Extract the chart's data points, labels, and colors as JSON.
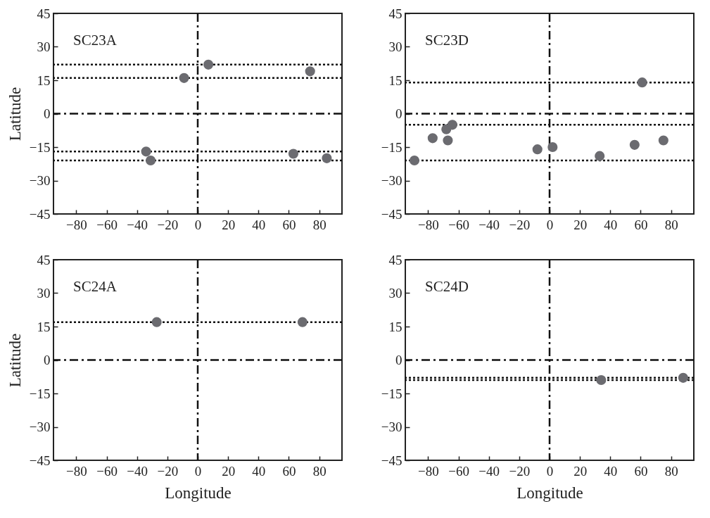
{
  "chart_data": [
    {
      "type": "scatter",
      "annotations": [
        "SC23A"
      ],
      "ylabel": "Latitude",
      "xlim": [
        -95,
        95
      ],
      "ylim": [
        -45,
        45
      ],
      "xticks": [
        -80,
        -60,
        -40,
        -20,
        0,
        20,
        40,
        60,
        80
      ],
      "yticks": [
        -45,
        -30,
        -15,
        0,
        15,
        30,
        45
      ],
      "marker": "circle",
      "series": [
        {
          "color": "#6b6b70",
          "x": [
            -9,
            7,
            74,
            -34,
            -31,
            63,
            85
          ],
          "values": [
            16,
            22,
            19,
            -17,
            -21,
            -18,
            -20
          ]
        }
      ],
      "ref_lines": [
        {
          "axis": "x",
          "value": 0,
          "line_style": "dashdot",
          "color": "#111111"
        },
        {
          "axis": "y",
          "value": 0,
          "line_style": "dashdot",
          "color": "#111111"
        },
        {
          "axis": "y",
          "value": 22,
          "line_style": "dotted",
          "color": "#111111"
        },
        {
          "axis": "y",
          "value": 16,
          "line_style": "dotted",
          "color": "#111111"
        },
        {
          "axis": "y",
          "value": -17,
          "line_style": "dotted",
          "color": "#111111"
        },
        {
          "axis": "y",
          "value": -21,
          "line_style": "dotted",
          "color": "#111111"
        }
      ]
    },
    {
      "type": "scatter",
      "annotations": [
        "SC23D"
      ],
      "xlim": [
        -95,
        95
      ],
      "ylim": [
        -45,
        45
      ],
      "xticks": [
        -80,
        -60,
        -40,
        -20,
        0,
        20,
        40,
        60,
        80
      ],
      "yticks": [
        -45,
        -30,
        -15,
        0,
        15,
        30,
        45
      ],
      "marker": "circle",
      "series": [
        {
          "color": "#6b6b70",
          "x": [
            -89,
            -77,
            -68,
            -64,
            -67,
            -8,
            2,
            33,
            56,
            75,
            61
          ],
          "values": [
            -21,
            -11,
            -7,
            -5,
            -12,
            -16,
            -15,
            -19,
            -14,
            -12,
            14
          ]
        }
      ],
      "ref_lines": [
        {
          "axis": "x",
          "value": 0,
          "line_style": "dashdot",
          "color": "#111111"
        },
        {
          "axis": "y",
          "value": 0,
          "line_style": "dashdot",
          "color": "#111111"
        },
        {
          "axis": "y",
          "value": 14,
          "line_style": "dotted",
          "color": "#111111"
        },
        {
          "axis": "y",
          "value": -5,
          "line_style": "dotted",
          "color": "#111111"
        },
        {
          "axis": "y",
          "value": -21,
          "line_style": "dotted",
          "color": "#111111"
        }
      ]
    },
    {
      "type": "scatter",
      "annotations": [
        "SC24A"
      ],
      "xlabel": "Longitude",
      "ylabel": "Latitude",
      "xlim": [
        -95,
        95
      ],
      "ylim": [
        -45,
        45
      ],
      "xticks": [
        -80,
        -60,
        -40,
        -20,
        0,
        20,
        40,
        60,
        80
      ],
      "yticks": [
        -45,
        -30,
        -15,
        0,
        15,
        30,
        45
      ],
      "marker": "circle",
      "series": [
        {
          "color": "#6b6b70",
          "x": [
            -27,
            69
          ],
          "values": [
            17,
            17
          ]
        }
      ],
      "ref_lines": [
        {
          "axis": "x",
          "value": 0,
          "line_style": "dashdot",
          "color": "#111111"
        },
        {
          "axis": "y",
          "value": 0,
          "line_style": "dashdot",
          "color": "#111111"
        },
        {
          "axis": "y",
          "value": 17,
          "line_style": "dotted",
          "color": "#111111"
        }
      ]
    },
    {
      "type": "scatter",
      "annotations": [
        "SC24D"
      ],
      "xlabel": "Longitude",
      "xlim": [
        -95,
        95
      ],
      "ylim": [
        -45,
        45
      ],
      "xticks": [
        -80,
        -60,
        -40,
        -20,
        0,
        20,
        40,
        60,
        80
      ],
      "yticks": [
        -45,
        -30,
        -15,
        0,
        15,
        30,
        45
      ],
      "marker": "circle",
      "series": [
        {
          "color": "#6b6b70",
          "x": [
            34,
            88
          ],
          "values": [
            -9,
            -8
          ]
        }
      ],
      "ref_lines": [
        {
          "axis": "x",
          "value": 0,
          "line_style": "dashdot",
          "color": "#111111"
        },
        {
          "axis": "y",
          "value": 0,
          "line_style": "dashdot",
          "color": "#111111"
        },
        {
          "axis": "y",
          "value": -8,
          "line_style": "dotted",
          "color": "#111111"
        },
        {
          "axis": "y",
          "value": -9,
          "line_style": "dotted",
          "color": "#111111"
        }
      ]
    }
  ]
}
